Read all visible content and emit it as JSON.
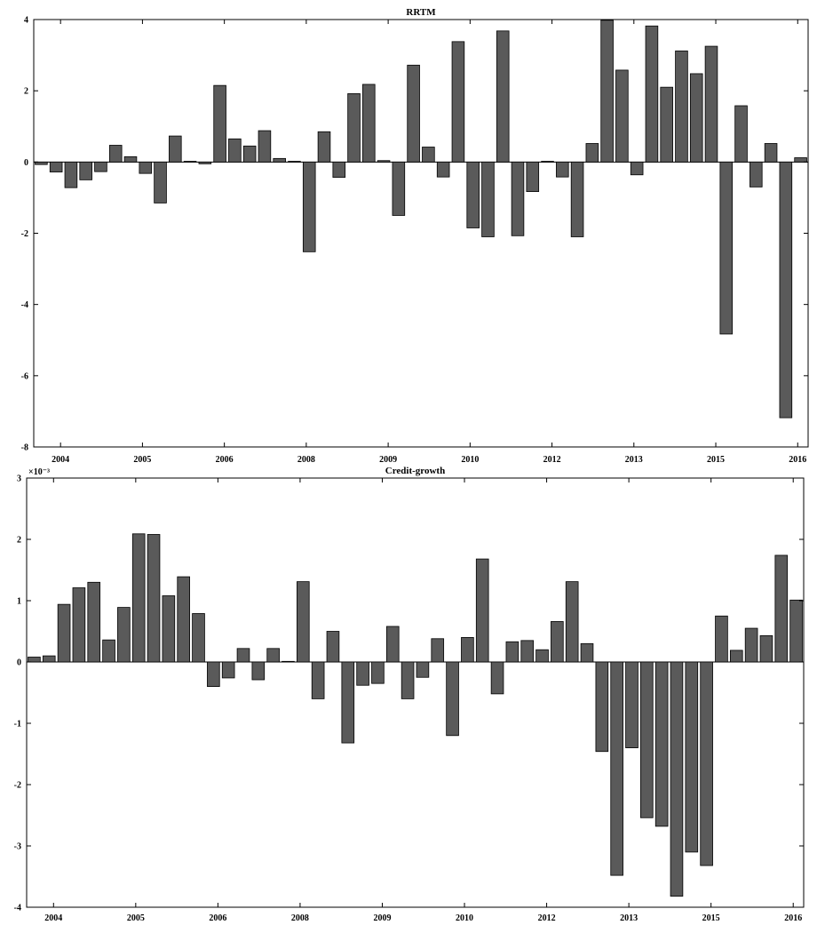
{
  "chart_data": [
    {
      "type": "bar",
      "title": "RRTM",
      "xlabel": "",
      "ylabel": "",
      "ylim": [
        -8,
        4
      ],
      "yticks": [
        -8,
        -6,
        -4,
        -2,
        0,
        2,
        4
      ],
      "ytick_labels": [
        "-8",
        "-6",
        "-4",
        "-2",
        "0",
        "2",
        "4"
      ],
      "y_exponent_label": "",
      "xtick_labels": [
        "2004",
        "2005",
        "2006",
        "2008",
        "2009",
        "2010",
        "2012",
        "2013",
        "2015",
        "2016"
      ],
      "bar_color": "#5a5a5a",
      "grid": false,
      "legend": "none",
      "values": [
        -0.07,
        -0.28,
        -0.72,
        -0.5,
        -0.27,
        0.47,
        0.15,
        -0.32,
        -1.15,
        0.73,
        0.02,
        -0.05,
        2.15,
        0.65,
        0.45,
        0.88,
        0.1,
        0.02,
        -2.52,
        0.85,
        -0.43,
        1.92,
        2.18,
        0.04,
        -1.5,
        2.72,
        0.42,
        -0.42,
        3.38,
        -1.85,
        -2.1,
        3.68,
        -2.07,
        -0.83,
        0.02,
        -0.42,
        -2.1,
        0.52,
        3.98,
        2.58,
        -0.36,
        3.82,
        2.1,
        3.12,
        2.48,
        3.25,
        -4.83,
        1.58,
        -0.7,
        0.52,
        -7.18,
        0.12
      ]
    },
    {
      "type": "bar",
      "title": "Credit-growth",
      "xlabel": "",
      "ylabel": "",
      "ylim": [
        -4,
        3
      ],
      "yticks": [
        -4,
        -3,
        -2,
        -1,
        0,
        1,
        2,
        3
      ],
      "ytick_labels": [
        "-4",
        "-3",
        "-2",
        "-1",
        "0",
        "1",
        "2",
        "3"
      ],
      "y_exponent_label": "×10⁻³",
      "xtick_labels": [
        "2004",
        "2005",
        "2006",
        "2008",
        "2009",
        "2010",
        "2012",
        "2013",
        "2015",
        "2016"
      ],
      "bar_color": "#5a5a5a",
      "grid": false,
      "legend": "none",
      "values": [
        0.08,
        0.1,
        0.94,
        1.21,
        1.3,
        0.36,
        0.89,
        2.09,
        2.08,
        1.08,
        1.39,
        0.79,
        -0.4,
        -0.26,
        0.22,
        -0.29,
        0.22,
        0.01,
        1.31,
        -0.6,
        0.5,
        -1.32,
        -0.38,
        -0.35,
        0.58,
        -0.6,
        -0.25,
        0.38,
        -1.2,
        0.4,
        1.68,
        -0.52,
        0.33,
        0.35,
        0.2,
        0.66,
        1.31,
        0.3,
        -1.46,
        -3.48,
        -1.4,
        -2.54,
        -2.68,
        -3.82,
        -3.1,
        -3.32,
        0.75,
        0.19,
        0.55,
        0.43,
        1.74,
        1.01
      ]
    }
  ]
}
